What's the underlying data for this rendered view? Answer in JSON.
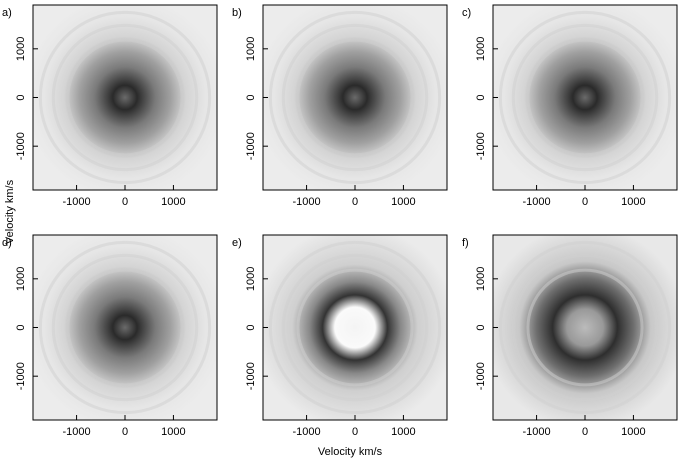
{
  "chart_data": [
    {
      "type": "image",
      "label": "a)",
      "xlim": [
        -1900,
        1900
      ],
      "ylim": [
        -1900,
        1900
      ],
      "xticks": [
        -1000,
        0,
        1000
      ],
      "yticks": [
        -1000,
        0,
        1000
      ]
    },
    {
      "type": "image",
      "label": "b)",
      "xlim": [
        -1900,
        1900
      ],
      "ylim": [
        -1900,
        1900
      ],
      "xticks": [
        -1000,
        0,
        1000
      ],
      "yticks": [
        -1000,
        0,
        1000
      ]
    },
    {
      "type": "image",
      "label": "c)",
      "xlim": [
        -1900,
        1900
      ],
      "ylim": [
        -1900,
        1900
      ],
      "xticks": [
        -1000,
        0,
        1000
      ],
      "yticks": [
        -1000,
        0,
        1000
      ]
    },
    {
      "type": "image",
      "label": "d)",
      "xlim": [
        -1900,
        1900
      ],
      "ylim": [
        -1900,
        1900
      ],
      "xticks": [
        -1000,
        0,
        1000
      ],
      "yticks": [
        -1000,
        0,
        1000
      ]
    },
    {
      "type": "image",
      "label": "e)",
      "xlim": [
        -1900,
        1900
      ],
      "ylim": [
        -1900,
        1900
      ],
      "xticks": [
        -1000,
        0,
        1000
      ],
      "yticks": [
        -1000,
        0,
        1000
      ]
    },
    {
      "type": "image",
      "label": "f)",
      "xlim": [
        -1900,
        1900
      ],
      "ylim": [
        -1900,
        1900
      ],
      "xticks": [
        -1000,
        0,
        1000
      ],
      "yticks": [
        -1000,
        0,
        1000
      ]
    }
  ],
  "figure": {
    "xlabel": "Velocity  km/s",
    "ylabel": "Velocity  km/s"
  }
}
